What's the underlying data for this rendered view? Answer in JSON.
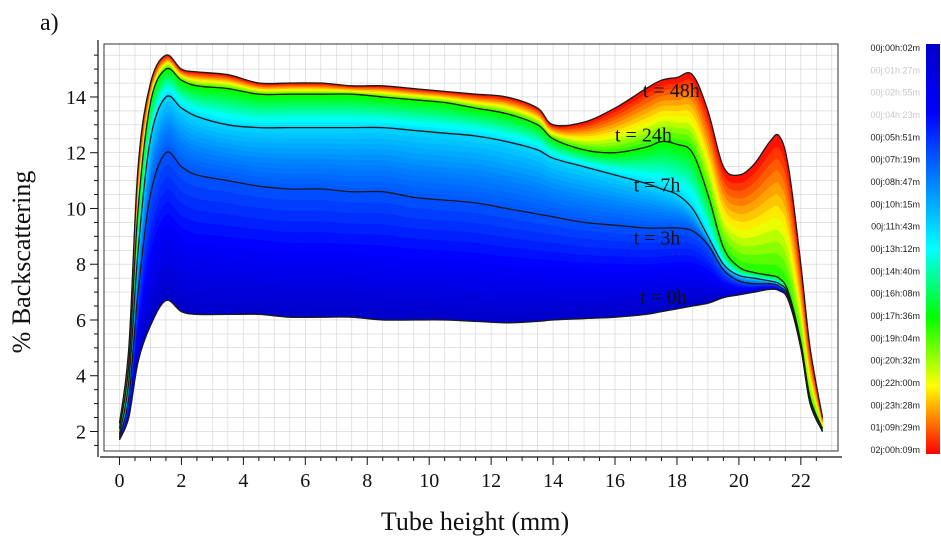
{
  "panel_label": "a)",
  "chart_data": {
    "type": "line",
    "xlabel": "Tube height (mm)",
    "ylabel": "% Backscattering",
    "xlim": [
      -0.5,
      23.2
    ],
    "ylim": [
      1.3,
      15.9
    ],
    "xticks": [
      0,
      2,
      4,
      6,
      8,
      10,
      12,
      14,
      16,
      18,
      20,
      22
    ],
    "yticks": [
      2,
      4,
      6,
      8,
      10,
      12,
      14
    ],
    "grid": true,
    "colorbar": {
      "placement": "right",
      "colors": [
        "#0000c8",
        "#0000ff",
        "#0080ff",
        "#00ffff",
        "#00ff00",
        "#ffff00",
        "#ff0000"
      ],
      "labels": [
        "00j:00h:02m",
        "00j:01h:27m",
        "00j:02h:55m",
        "00j:04h:23m",
        "00j:05h:51m",
        "00j:07h:19m",
        "00j:08h:47m",
        "00j:10h:15m",
        "00j:11h:43m",
        "00j:13h:12m",
        "00j:14h:40m",
        "00j:16h:08m",
        "00j:17h:36m",
        "00j:19h:04m",
        "00j:20h:32m",
        "00j:22h:00m",
        "00j:23h:28m",
        "01j:09h:29m",
        "02j:00h:09m"
      ]
    },
    "x": [
      0,
      0.3,
      0.6,
      1.0,
      1.5,
      2.0,
      2.5,
      3.5,
      4.5,
      5.5,
      6.5,
      7.5,
      8.5,
      9.5,
      10.5,
      11.5,
      12.5,
      13.5,
      14.0,
      15.0,
      16.0,
      17.0,
      17.5,
      18.0,
      18.5,
      19.0,
      19.5,
      20.0,
      20.5,
      21.0,
      21.3,
      21.6,
      22.0,
      22.3,
      22.7
    ],
    "series": [
      {
        "name": "t = 0h",
        "color": "#1a1a1a",
        "values": [
          1.7,
          2.5,
          4.5,
          5.8,
          6.7,
          6.3,
          6.2,
          6.2,
          6.2,
          6.1,
          6.1,
          6.1,
          6.0,
          6.0,
          6.0,
          5.95,
          5.9,
          5.95,
          6.0,
          6.05,
          6.1,
          6.2,
          6.3,
          6.4,
          6.5,
          6.6,
          6.8,
          6.9,
          7.0,
          7.1,
          7.05,
          6.7,
          5.0,
          3.0,
          2.0
        ]
      },
      {
        "name": "t = 3h",
        "color": "#1a1a1a",
        "values": [
          1.8,
          3.2,
          7.0,
          10.5,
          12.0,
          11.5,
          11.2,
          11.0,
          10.8,
          10.7,
          10.7,
          10.6,
          10.6,
          10.4,
          10.3,
          10.2,
          10.0,
          9.8,
          9.7,
          9.5,
          9.4,
          9.3,
          9.3,
          9.3,
          9.2,
          8.7,
          7.8,
          7.4,
          7.3,
          7.3,
          7.2,
          6.8,
          5.0,
          3.0,
          2.0
        ]
      },
      {
        "name": "t = 7h",
        "color": "#1a1a1a",
        "values": [
          1.9,
          3.8,
          8.5,
          12.5,
          14.0,
          13.6,
          13.3,
          13.0,
          12.9,
          12.9,
          12.9,
          12.9,
          12.9,
          12.8,
          12.7,
          12.6,
          12.4,
          12.1,
          11.8,
          11.5,
          11.2,
          10.9,
          10.7,
          10.5,
          10.0,
          9.0,
          8.0,
          7.6,
          7.5,
          7.4,
          7.3,
          6.9,
          5.1,
          3.1,
          2.0
        ]
      },
      {
        "name": "t = 24h",
        "color": "#1a1a1a",
        "values": [
          2.1,
          4.4,
          10.0,
          13.8,
          15.0,
          14.6,
          14.4,
          14.3,
          14.1,
          14.1,
          14.1,
          14.1,
          14.0,
          13.9,
          13.8,
          13.6,
          13.4,
          13.0,
          12.5,
          12.1,
          12.0,
          12.2,
          12.4,
          12.3,
          12.0,
          10.5,
          8.6,
          7.9,
          7.7,
          7.6,
          7.5,
          7.0,
          5.2,
          3.2,
          2.1
        ]
      },
      {
        "name": "t = 48h",
        "color": "#1a1a1a",
        "values": [
          2.3,
          5.0,
          11.5,
          14.5,
          15.5,
          15.0,
          14.9,
          14.8,
          14.5,
          14.5,
          14.5,
          14.4,
          14.4,
          14.3,
          14.2,
          14.1,
          14.0,
          13.6,
          13.0,
          13.1,
          13.6,
          14.3,
          14.6,
          14.7,
          14.8,
          13.5,
          11.5,
          11.2,
          11.6,
          12.4,
          12.6,
          11.5,
          8.0,
          5.0,
          2.5
        ]
      }
    ]
  }
}
